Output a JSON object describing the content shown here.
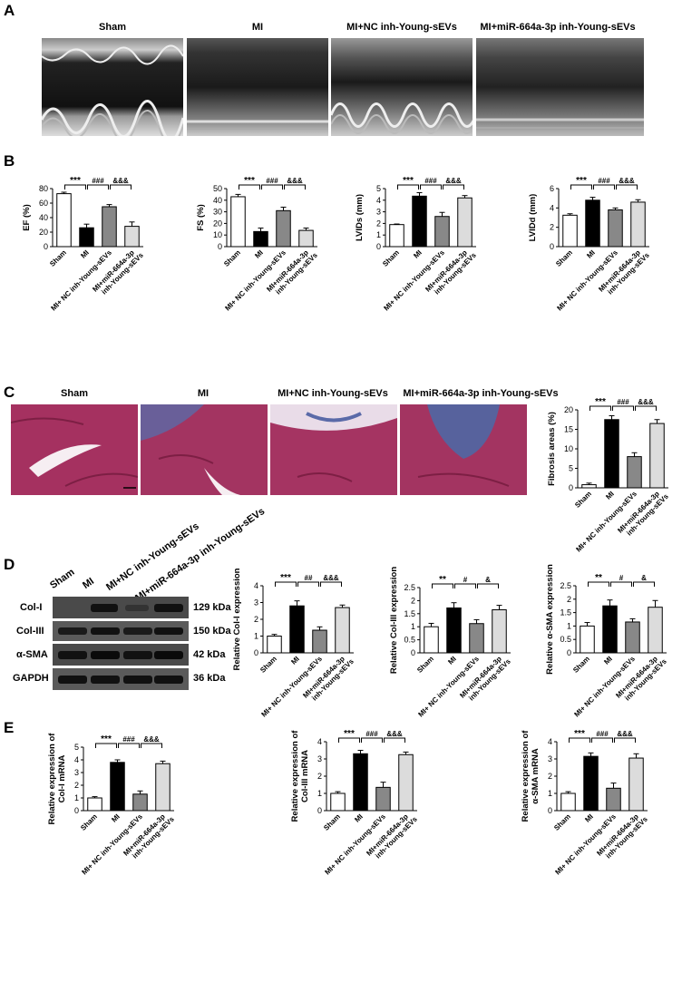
{
  "panels": {
    "A": {
      "letter": "A",
      "groups": [
        "Sham",
        "MI",
        "MI+NC inh-Young-sEVs",
        "MI+miR-664a-3p inh-Young-sEVs"
      ]
    },
    "B": {
      "letter": "B"
    },
    "C": {
      "letter": "C",
      "groups": [
        "Sham",
        "MI",
        "MI+NC inh-Young-sEVs",
        "MI+miR-664a-3p inh-Young-sEVs"
      ]
    },
    "D": {
      "letter": "D",
      "lanes": [
        "Sham",
        "MI",
        "MI+NC inh-Young-sEVs",
        "MI+miR-664a-3p inh-Young-sEVs"
      ],
      "blots": [
        {
          "protein": "Col-I",
          "kda": "129 kDa"
        },
        {
          "protein": "Col-III",
          "kda": "150 kDa"
        },
        {
          "protein": "α-SMA",
          "kda": "42 kDa"
        },
        {
          "protein": "GAPDH",
          "kda": "36 kDa"
        }
      ]
    },
    "E": {
      "letter": "E"
    }
  },
  "categories": [
    "Sham",
    "MI",
    "MI+ NC inh-Young-sEVs",
    "MI+miR-664a-3p inh-Young-sEVs"
  ],
  "bar_colors": [
    "#ffffff",
    "#000000",
    "#888888",
    "#dcdcdc"
  ],
  "chart_data": [
    {
      "id": "ef",
      "panel": "B",
      "type": "bar",
      "ylabel": "EF (%)",
      "ylim": [
        0,
        80
      ],
      "yticks": [
        0,
        20,
        40,
        60,
        80
      ],
      "values": [
        73,
        26,
        55,
        28
      ],
      "errors": [
        2,
        5,
        3,
        6
      ],
      "sig": [
        "***",
        "###",
        "&&&"
      ]
    },
    {
      "id": "fs",
      "panel": "B",
      "type": "bar",
      "ylabel": "FS (%)",
      "ylim": [
        0,
        50
      ],
      "yticks": [
        0,
        10,
        20,
        30,
        40,
        50
      ],
      "values": [
        43,
        13,
        31,
        14
      ],
      "errors": [
        2,
        3,
        3,
        2
      ],
      "sig": [
        "***",
        "###",
        "&&&"
      ]
    },
    {
      "id": "lvids",
      "panel": "B",
      "type": "bar",
      "ylabel": "LVIDs (mm)",
      "ylim": [
        0,
        5
      ],
      "yticks": [
        0,
        1,
        2,
        3,
        4,
        5
      ],
      "values": [
        1.9,
        4.35,
        2.6,
        4.2
      ],
      "errors": [
        0.05,
        0.3,
        0.35,
        0.2
      ],
      "sig": [
        "***",
        "###",
        "&&&"
      ]
    },
    {
      "id": "lvidd",
      "panel": "B",
      "type": "bar",
      "ylabel": "LVIDd (mm)",
      "ylim": [
        0,
        6
      ],
      "yticks": [
        0,
        2,
        4,
        6
      ],
      "values": [
        3.25,
        4.8,
        3.8,
        4.6
      ],
      "errors": [
        0.15,
        0.3,
        0.2,
        0.25
      ],
      "sig": [
        "***",
        "###",
        "&&&"
      ]
    },
    {
      "id": "fibrosis",
      "panel": "C",
      "type": "bar",
      "ylabel": "Fibrosis areas (%)",
      "ylim": [
        0,
        20
      ],
      "yticks": [
        0,
        5,
        10,
        15,
        20
      ],
      "values": [
        0.8,
        17.5,
        8,
        16.5
      ],
      "errors": [
        0.4,
        1,
        1,
        1
      ],
      "sig": [
        "***",
        "###",
        "&&&"
      ]
    },
    {
      "id": "coli-wb",
      "panel": "D",
      "type": "bar",
      "ylabel": "Relative Col-I expression",
      "ylim": [
        0,
        4
      ],
      "yticks": [
        0,
        1,
        2,
        3,
        4
      ],
      "values": [
        1.0,
        2.8,
        1.35,
        2.7
      ],
      "errors": [
        0.1,
        0.3,
        0.2,
        0.15
      ],
      "sig": [
        "***",
        "##",
        "&&&"
      ]
    },
    {
      "id": "coliii-wb",
      "panel": "D",
      "type": "bar",
      "ylabel": "Relative Col-III expression",
      "ylim": [
        0,
        2.5
      ],
      "yticks": [
        0,
        0.5,
        1.0,
        1.5,
        2.0,
        2.5
      ],
      "values": [
        1.0,
        1.72,
        1.12,
        1.65
      ],
      "errors": [
        0.13,
        0.2,
        0.15,
        0.17
      ],
      "sig": [
        "**",
        "#",
        "&"
      ]
    },
    {
      "id": "asma-wb",
      "panel": "D",
      "type": "bar",
      "ylabel": "Relative α-SMA expression",
      "ylim": [
        0,
        2.5
      ],
      "yticks": [
        0,
        0.5,
        1.0,
        1.5,
        2.0,
        2.5
      ],
      "values": [
        1.0,
        1.75,
        1.15,
        1.7
      ],
      "errors": [
        0.13,
        0.22,
        0.12,
        0.25
      ],
      "sig": [
        "**",
        "#",
        "&"
      ]
    },
    {
      "id": "coli-mrna",
      "panel": "E",
      "type": "bar",
      "ylabel": "Relative expression of\nCol-I mRNA",
      "ylim": [
        0,
        5
      ],
      "yticks": [
        0,
        1,
        2,
        3,
        4,
        5
      ],
      "values": [
        1.0,
        3.8,
        1.3,
        3.7
      ],
      "errors": [
        0.1,
        0.2,
        0.25,
        0.2
      ],
      "sig": [
        "***",
        "###",
        "&&&"
      ]
    },
    {
      "id": "coliii-mrna",
      "panel": "E",
      "type": "bar",
      "ylabel": "Relative expression of\nCol-III mRNA",
      "ylim": [
        0,
        4
      ],
      "yticks": [
        0,
        1,
        2,
        3,
        4
      ],
      "values": [
        1.0,
        3.3,
        1.35,
        3.25
      ],
      "errors": [
        0.1,
        0.2,
        0.3,
        0.15
      ],
      "sig": [
        "***",
        "###",
        "&&&"
      ]
    },
    {
      "id": "asma-mrna",
      "panel": "E",
      "type": "bar",
      "ylabel": "Relative expression of\nα-SMA mRNA",
      "ylim": [
        0,
        4
      ],
      "yticks": [
        0,
        1,
        2,
        3,
        4
      ],
      "values": [
        1.0,
        3.15,
        1.3,
        3.05
      ],
      "errors": [
        0.1,
        0.2,
        0.3,
        0.25
      ],
      "sig": [
        "***",
        "###",
        "&&&"
      ]
    }
  ]
}
